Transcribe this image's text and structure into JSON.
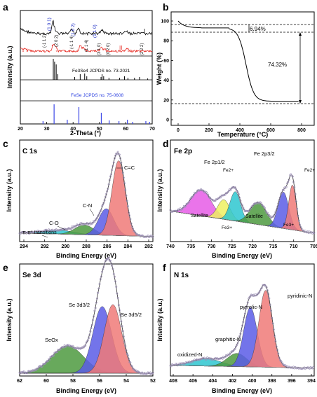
{
  "colors": {
    "axis": "#000000",
    "xrd_a": "#000000",
    "xrd_b": "#e8332c",
    "ref1": "#000000",
    "ref2": "#3b46e6",
    "ref2_text": "#2a3fe0",
    "peak_idx_black": "#1a1a1a",
    "peak_idx_blue": "#2434c8",
    "tga": "#000000",
    "red_fill": "#f07a78",
    "blue_fill": "#5a5ce6",
    "green_fill": "#4e9a40",
    "teal_fill": "#2ec7d0",
    "magenta_fill": "#e65ce6",
    "yellow_fill": "#eef060",
    "data_dot": "#9b8fb5",
    "envelope": "#444444"
  },
  "panel_letters": [
    "a",
    "b",
    "c",
    "d",
    "e",
    "f"
  ],
  "panel_a": {
    "ylabel": "Intensity (a.u.)",
    "xlabel": "2-Theta (°)",
    "xticks": [
      "20",
      "30",
      "40",
      "50",
      "60",
      "70"
    ],
    "marker_I": "I",
    "marker_II": "II",
    "ref1_label": "Fe3Se4 JCPDS no. 73-2021",
    "ref2_label": "FeSe JCPDS no. 75-0608",
    "indices_I": [
      "(1 0 1)",
      "(1 0 2)",
      "(1 1 0)"
    ],
    "indices_II": [
      "(-1 1 2)",
      "(2 0 2)",
      "(-1 1 4)",
      "(1 1 4)",
      "(3 1 0)",
      "(0 2 0)",
      "(2 2 2)"
    ]
  },
  "panel_b": {
    "ylabel": "Weight (%)",
    "xlabel": "Temperature (°C)",
    "xticks": [
      "0",
      "200",
      "400",
      "600",
      "800"
    ],
    "yticks": [
      "100",
      "80",
      "60",
      "40",
      "20",
      "0"
    ],
    "ann1": "6.94%",
    "ann2": "74.32%"
  },
  "panel_c": {
    "title": "C 1s",
    "ylabel": "Intensity (a.u.)",
    "xlabel": "Binding Energy (eV)",
    "xticks": [
      "294",
      "292",
      "290",
      "288",
      "286",
      "284",
      "282"
    ],
    "labels": [
      "C=C",
      "C-N",
      "C-O",
      "π-π* transitions"
    ]
  },
  "panel_d": {
    "title": "Fe 2p",
    "ylabel": "Intensity (a.u.)",
    "xlabel": "Binding Energy (eV)",
    "xticks": [
      "740",
      "735",
      "730",
      "725",
      "720",
      "715",
      "710",
      "705"
    ],
    "labels": {
      "fe2p12": "Fe 2p1/2",
      "fe2p32": "Fe 2p3/2",
      "fe2_a": "Fe2+",
      "fe2_b": "Fe2+",
      "fe3_a": "Fe3+",
      "fe3_b": "Fe3+",
      "sat_a": "Satellite",
      "sat_b": "Satellite"
    }
  },
  "panel_e": {
    "title": "Se 3d",
    "ylabel": "Intensity (a.u.)",
    "xlabel": "Binding Energy (eV)",
    "xticks": [
      "62",
      "60",
      "58",
      "56",
      "54",
      "52"
    ],
    "labels": [
      "Se 3d3/2",
      "Se 3d5/2",
      "SeOx"
    ]
  },
  "panel_f": {
    "title": "N 1s",
    "ylabel": "Intensity (a.u.)",
    "xlabel": "Binding Energy (eV)",
    "xticks": [
      "408",
      "406",
      "404",
      "402",
      "400",
      "398",
      "396",
      "394"
    ],
    "labels": [
      "pyridinic-N",
      "pyrrolic-N",
      "graphitic-N",
      "oxidized-N"
    ]
  }
}
